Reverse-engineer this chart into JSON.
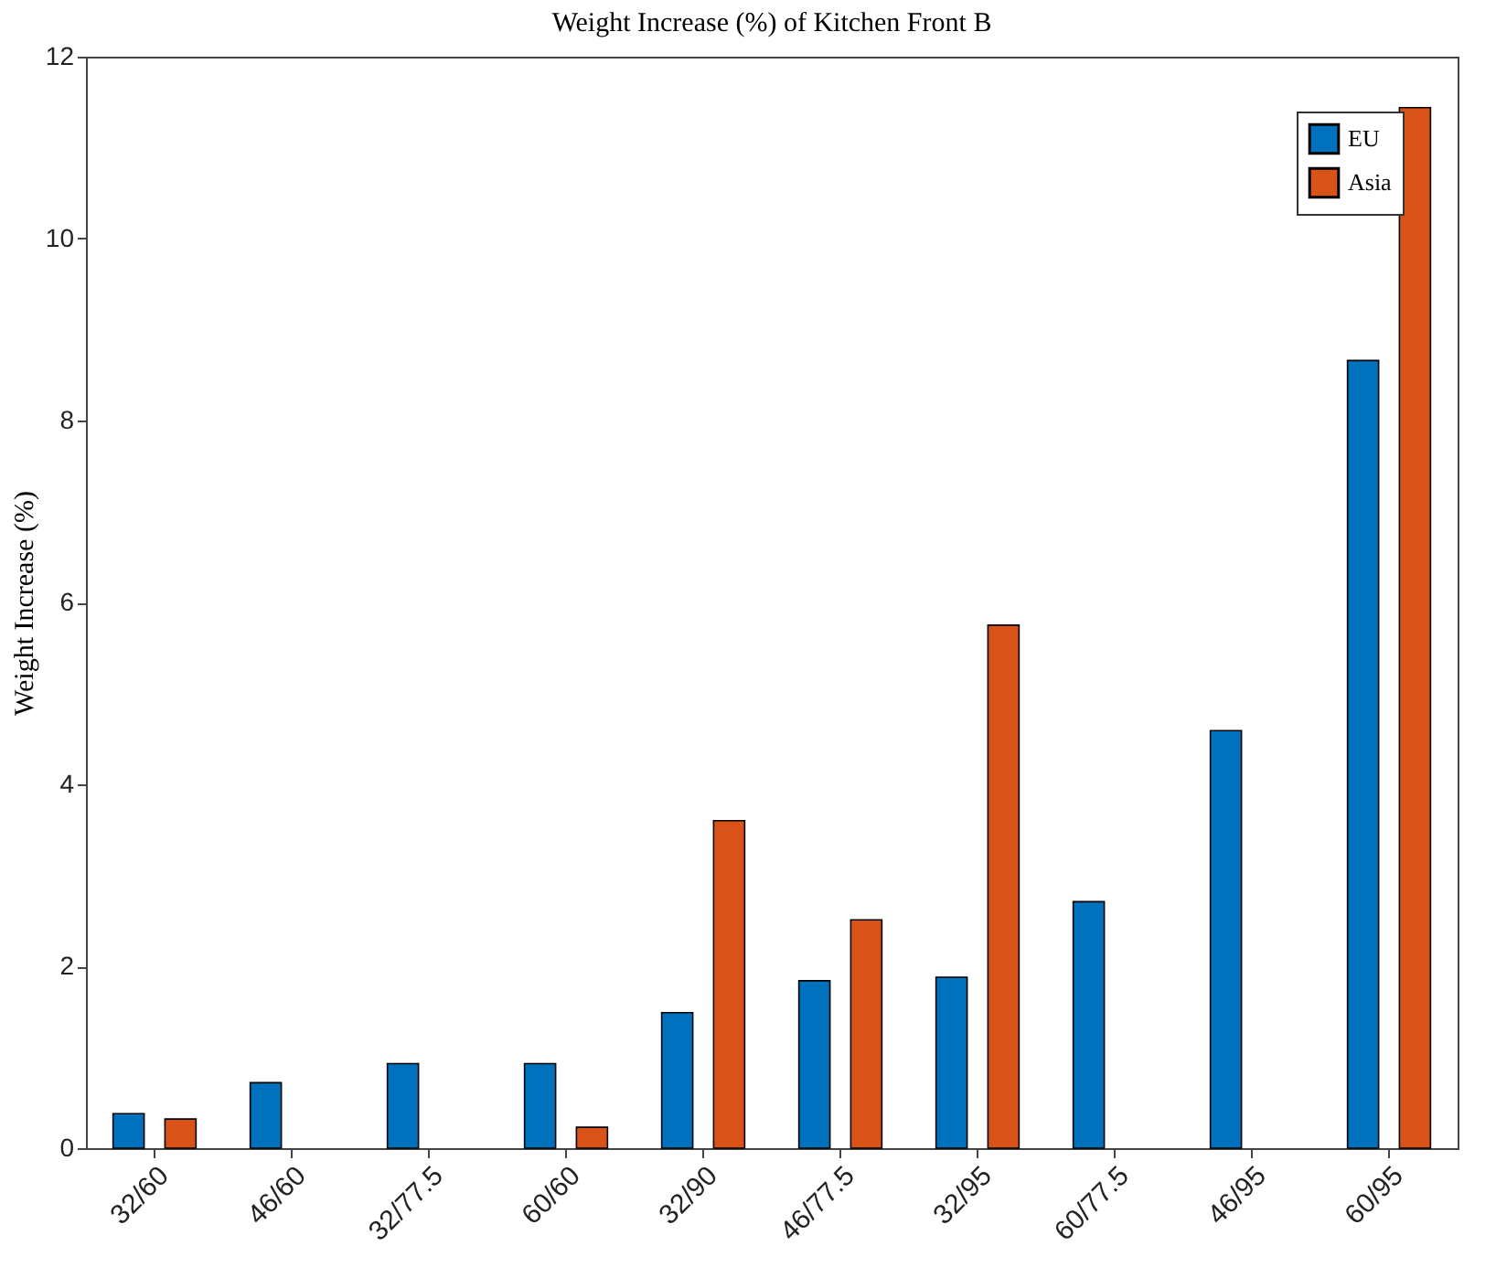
{
  "chart_data": {
    "type": "bar",
    "title": "Weight Increase (%) of Kitchen Front B",
    "ylabel": "Weight Increase (%)",
    "categories": [
      "32/60",
      "46/60",
      "32/77.5",
      "60/60",
      "32/90",
      "46/77.5",
      "32/95",
      "60/77.5",
      "46/95",
      "60/95"
    ],
    "series": [
      {
        "name": "EU",
        "color": "#0072bd",
        "values": [
          0.38,
          0.72,
          0.93,
          0.93,
          1.49,
          1.84,
          1.88,
          2.71,
          4.59,
          8.66
        ]
      },
      {
        "name": "Asia",
        "color": "#d95319",
        "values": [
          0.32,
          null,
          null,
          0.23,
          3.6,
          2.51,
          5.75,
          null,
          null,
          11.44
        ]
      }
    ],
    "ylim": [
      0,
      12
    ],
    "yticks": [
      0,
      2,
      4,
      6,
      8,
      10,
      12
    ],
    "grid": false,
    "legend": "top right"
  }
}
